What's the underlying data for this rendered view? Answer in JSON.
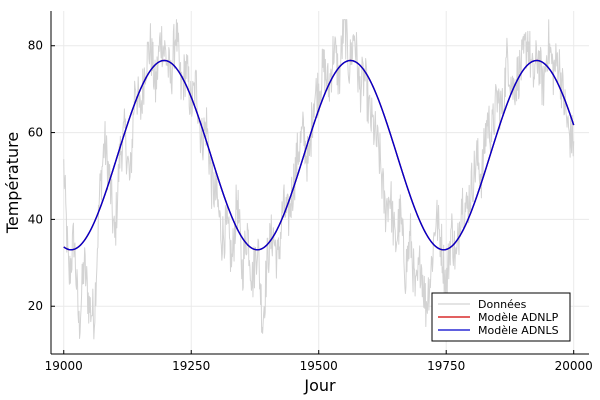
{
  "chart_data": {
    "type": "line",
    "title": "",
    "xlabel": "Jour",
    "ylabel": "Température",
    "xlim": [
      18975,
      20030
    ],
    "ylim": [
      9,
      88
    ],
    "xticks": [
      19000,
      19250,
      19500,
      19750,
      20000
    ],
    "yticks": [
      20,
      40,
      60,
      80
    ],
    "grid": true,
    "legend_position": "bottom-right",
    "series": [
      {
        "name": "Données",
        "color": "#d3d3d3",
        "style": "noisy",
        "x": [
          19000,
          19010,
          19020,
          19030,
          19040,
          19050,
          19060,
          19070,
          19080,
          19090,
          19100,
          19110,
          19120,
          19130,
          19140,
          19150,
          19160,
          19170,
          19180,
          19190,
          19200,
          19210,
          19220,
          19230,
          19240,
          19250,
          19260,
          19270,
          19280,
          19290,
          19300,
          19310,
          19320,
          19330,
          19340,
          19350,
          19360,
          19370,
          19380,
          19390,
          19400,
          19410,
          19420,
          19430,
          19440,
          19450,
          19460,
          19470,
          19480,
          19490,
          19500,
          19510,
          19520,
          19530,
          19540,
          19550,
          19560,
          19570,
          19580,
          19590,
          19600,
          19610,
          19620,
          19630,
          19640,
          19650,
          19660,
          19670,
          19680,
          19690,
          19700,
          19710,
          19720,
          19730,
          19740,
          19750,
          19760,
          19770,
          19780,
          19790,
          19800,
          19810,
          19820,
          19830,
          19840,
          19850,
          19860,
          19870,
          19880,
          19890,
          19900,
          19910,
          19920,
          19930,
          19940,
          19950,
          19960,
          19970,
          19980,
          19990,
          20000
        ],
        "y": [
          52,
          26,
          36,
          15,
          30,
          20,
          18,
          45,
          58,
          49,
          35,
          55,
          60,
          48,
          72,
          64,
          76,
          80,
          70,
          82,
          78,
          72,
          84,
          70,
          75,
          66,
          71,
          58,
          62,
          48,
          45,
          36,
          38,
          30,
          45,
          28,
          38,
          26,
          35,
          16,
          32,
          37,
          30,
          43,
          40,
          48,
          56,
          60,
          52,
          68,
          70,
          75,
          70,
          80,
          72,
          86,
          75,
          83,
          70,
          73,
          64,
          60,
          54,
          42,
          46,
          34,
          41,
          28,
          36,
          22,
          31,
          20,
          28,
          41,
          35,
          24,
          38,
          30,
          45,
          42,
          48,
          54,
          50,
          63,
          60,
          68,
          65,
          78,
          70,
          73,
          76,
          82,
          72,
          78,
          70,
          81,
          74,
          77,
          68,
          60,
          58
        ]
      },
      {
        "name": "Modèle ADNLP",
        "color": "#d00000",
        "model": {
          "mean": 54.8,
          "amplitude": 21.8,
          "period": 365.25,
          "peak_day": 19197
        },
        "x_range": [
          19000,
          20000
        ]
      },
      {
        "name": "Modèle ADNLS",
        "color": "#0000cc",
        "model": {
          "mean": 54.8,
          "amplitude": 21.8,
          "period": 365.25,
          "peak_day": 19197
        },
        "x_range": [
          19000,
          20000
        ]
      }
    ]
  }
}
